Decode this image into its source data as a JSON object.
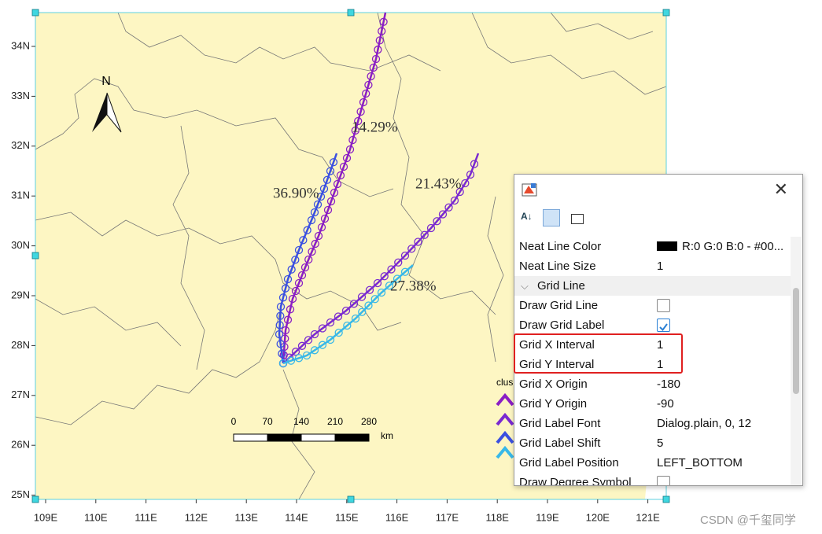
{
  "map": {
    "y_ticks": [
      "34N",
      "33N",
      "32N",
      "31N",
      "30N",
      "29N",
      "28N",
      "27N",
      "26N",
      "25N"
    ],
    "x_ticks": [
      "109E",
      "110E",
      "111E",
      "112E",
      "113E",
      "114E",
      "115E",
      "116E",
      "117E",
      "118E",
      "119E",
      "120E",
      "121E"
    ],
    "north": "N",
    "labels": [
      "14.29%",
      "21.43%",
      "36.90%",
      "27.38%"
    ],
    "scale_bar": {
      "ticks": [
        "0",
        "70",
        "140",
        "210",
        "280"
      ],
      "unit": "km"
    },
    "legend_title": "clus"
  },
  "panel": {
    "rows": [
      {
        "name": "Neat Line Color",
        "value": "R:0 G:0 B:0 - #00...",
        "swatch": "#000000"
      },
      {
        "name": "Neat Line Size",
        "value": "1"
      },
      {
        "name": "Grid Line",
        "section": true
      },
      {
        "name": "Draw Grid Line",
        "checked": false
      },
      {
        "name": "Draw Grid Label",
        "checked": true
      },
      {
        "name": "Grid X Interval",
        "value": "1",
        "highlight": true
      },
      {
        "name": "Grid Y Interval",
        "value": "1",
        "highlight": true
      },
      {
        "name": "Grid X Origin",
        "value": "-180"
      },
      {
        "name": "Grid Y Origin",
        "value": "-90"
      },
      {
        "name": "Grid Label Font",
        "value": "Dialog.plain, 0, 12"
      },
      {
        "name": "Grid Label Shift",
        "value": "5"
      },
      {
        "name": "Grid Label Position",
        "value": "LEFT_BOTTOM"
      },
      {
        "name": "Draw Degree Symbol",
        "checked": false
      }
    ]
  },
  "watermark": "CSDN @千玺同学"
}
